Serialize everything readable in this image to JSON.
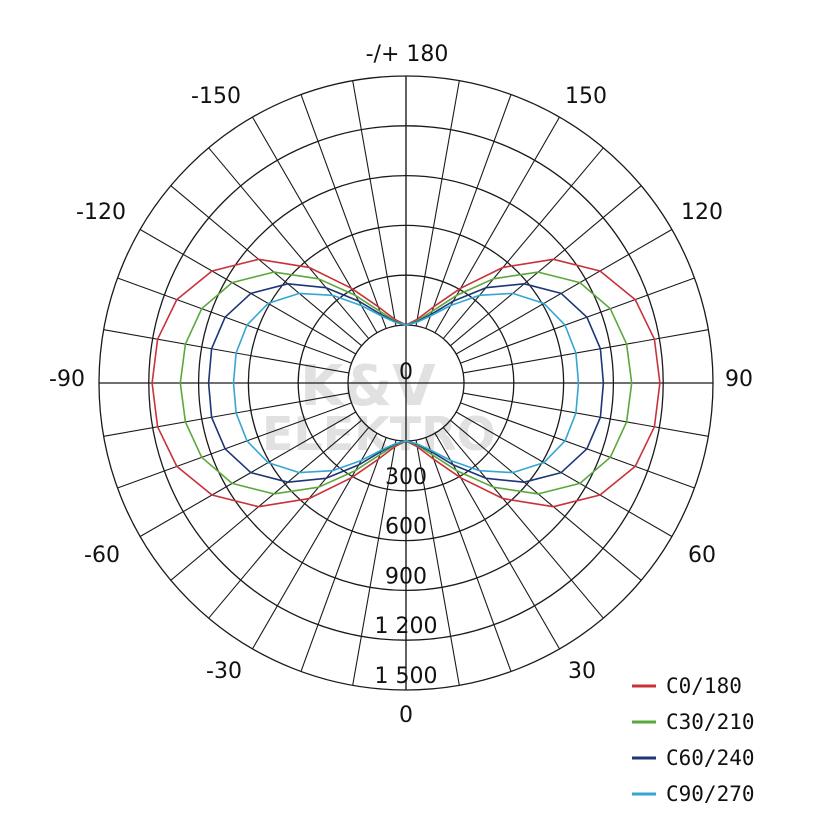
{
  "chart_data": {
    "type": "polar",
    "title": "",
    "angle_labels": [
      {
        "angle": 180,
        "label": "-/+ 180"
      },
      {
        "angle": 150,
        "label": "150"
      },
      {
        "angle": 120,
        "label": "120"
      },
      {
        "angle": 90,
        "label": "90"
      },
      {
        "angle": 60,
        "label": "60"
      },
      {
        "angle": 30,
        "label": "30"
      },
      {
        "angle": 0,
        "label": "0"
      },
      {
        "angle": -30,
        "label": "-30"
      },
      {
        "angle": -60,
        "label": "-60"
      },
      {
        "angle": -90,
        "label": "-90"
      },
      {
        "angle": -120,
        "label": "-120"
      },
      {
        "angle": -150,
        "label": "-150"
      }
    ],
    "radial_ticks": [
      {
        "value": 0,
        "label": "0"
      },
      {
        "value": 300,
        "label": "300"
      },
      {
        "value": 600,
        "label": "600"
      },
      {
        "value": 900,
        "label": "900"
      },
      {
        "value": 1200,
        "label": "1 200"
      },
      {
        "value": 1500,
        "label": "1 500"
      }
    ],
    "rmax": 1500,
    "spoke_step_deg": 10,
    "legend_position": "bottom-right",
    "watermark": {
      "line1": "K&V",
      "line2": "ELEKTRO"
    },
    "series": [
      {
        "name": "C0/180",
        "color": "#c8323a",
        "angles": [
          0,
          10,
          20,
          30,
          40,
          50,
          60,
          70,
          80,
          90,
          100,
          110,
          120,
          130,
          140,
          150,
          160,
          170,
          180
        ],
        "values": [
          0,
          40,
          140,
          310,
          560,
          810,
          1000,
          1120,
          1170,
          1180,
          1170,
          1120,
          1000,
          810,
          560,
          310,
          140,
          40,
          0
        ]
      },
      {
        "name": "C30/210",
        "color": "#5aa83c",
        "angles": [
          0,
          10,
          20,
          30,
          40,
          50,
          60,
          70,
          80,
          90,
          100,
          110,
          120,
          130,
          140,
          150,
          160,
          170,
          180
        ],
        "values": [
          0,
          30,
          110,
          260,
          470,
          690,
          860,
          960,
          1000,
          1010,
          1000,
          960,
          860,
          690,
          470,
          260,
          110,
          30,
          0
        ]
      },
      {
        "name": "C60/240",
        "color": "#1e3577",
        "angles": [
          0,
          10,
          20,
          30,
          40,
          50,
          60,
          70,
          80,
          90,
          100,
          110,
          120,
          130,
          140,
          150,
          160,
          170,
          180
        ],
        "values": [
          0,
          25,
          90,
          220,
          400,
          580,
          730,
          810,
          840,
          840,
          840,
          810,
          730,
          580,
          400,
          220,
          90,
          25,
          0
        ]
      },
      {
        "name": "C90/270",
        "color": "#35a6d2",
        "angles": [
          0,
          10,
          20,
          30,
          40,
          50,
          60,
          70,
          80,
          90,
          100,
          110,
          120,
          130,
          140,
          150,
          160,
          170,
          180
        ],
        "values": [
          0,
          22,
          80,
          190,
          340,
          490,
          610,
          670,
          690,
          690,
          690,
          670,
          610,
          490,
          340,
          190,
          80,
          22,
          0
        ]
      }
    ]
  }
}
